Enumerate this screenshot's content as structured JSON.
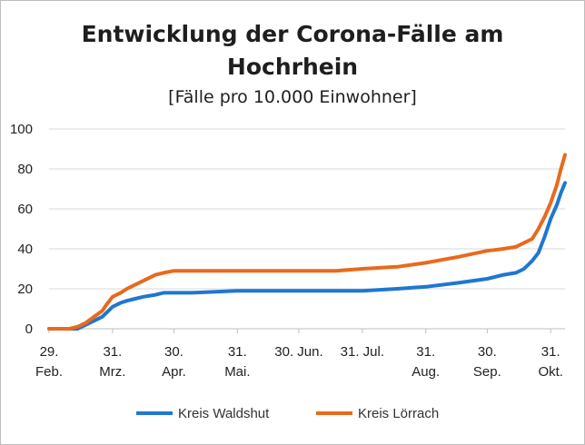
{
  "chart_data": {
    "type": "line",
    "title_line1": "Entwicklung der Corona-Fälle am",
    "title_line2": "Hochrhein",
    "subtitle": "[Fälle pro 10.000  Einwohner]",
    "ylim": [
      0,
      100
    ],
    "yticks": [
      "0",
      "20",
      "40",
      "60",
      "80",
      "100"
    ],
    "grid": true,
    "legend_position": "bottom",
    "x_ticks": [
      {
        "line1": "29.",
        "line2": "Feb.",
        "day": 0
      },
      {
        "line1": "31.",
        "line2": "Mrz.",
        "day": 31
      },
      {
        "line1": "30.",
        "line2": "Apr.",
        "day": 61
      },
      {
        "line1": "31.",
        "line2": "Mai.",
        "day": 92
      },
      {
        "line1": "30. Jun.",
        "line2": "",
        "day": 122
      },
      {
        "line1": "31. Jul.",
        "line2": "",
        "day": 153
      },
      {
        "line1": "31.",
        "line2": "Aug.",
        "day": 184
      },
      {
        "line1": "30.",
        "line2": "Sep.",
        "day": 214
      },
      {
        "line1": "31.",
        "line2": "Okt.",
        "day": 245
      }
    ],
    "x": [
      0,
      10,
      14,
      18,
      22,
      26,
      28,
      31,
      35,
      38,
      42,
      46,
      52,
      56,
      61,
      70,
      92,
      122,
      140,
      153,
      170,
      184,
      200,
      214,
      222,
      228,
      232,
      236,
      239,
      242,
      245,
      248,
      250,
      252
    ],
    "series": [
      {
        "name": "Kreis Waldshut",
        "color": "#1f77d0",
        "values": [
          0,
          0,
          0,
          2,
          4,
          6,
          8,
          11,
          13,
          14,
          15,
          16,
          17,
          18,
          18,
          18,
          19,
          19,
          19,
          19,
          20,
          21,
          23,
          25,
          27,
          28,
          30,
          34,
          38,
          46,
          55,
          62,
          68,
          73
        ]
      },
      {
        "name": "Kreis Lörrach",
        "color": "#e86a1c",
        "values": [
          0,
          0,
          1,
          3,
          6,
          9,
          12,
          16,
          18,
          20,
          22,
          24,
          27,
          28,
          29,
          29,
          29,
          29,
          29,
          30,
          31,
          33,
          36,
          39,
          40,
          41,
          43,
          45,
          50,
          56,
          63,
          72,
          80,
          87
        ]
      }
    ]
  }
}
